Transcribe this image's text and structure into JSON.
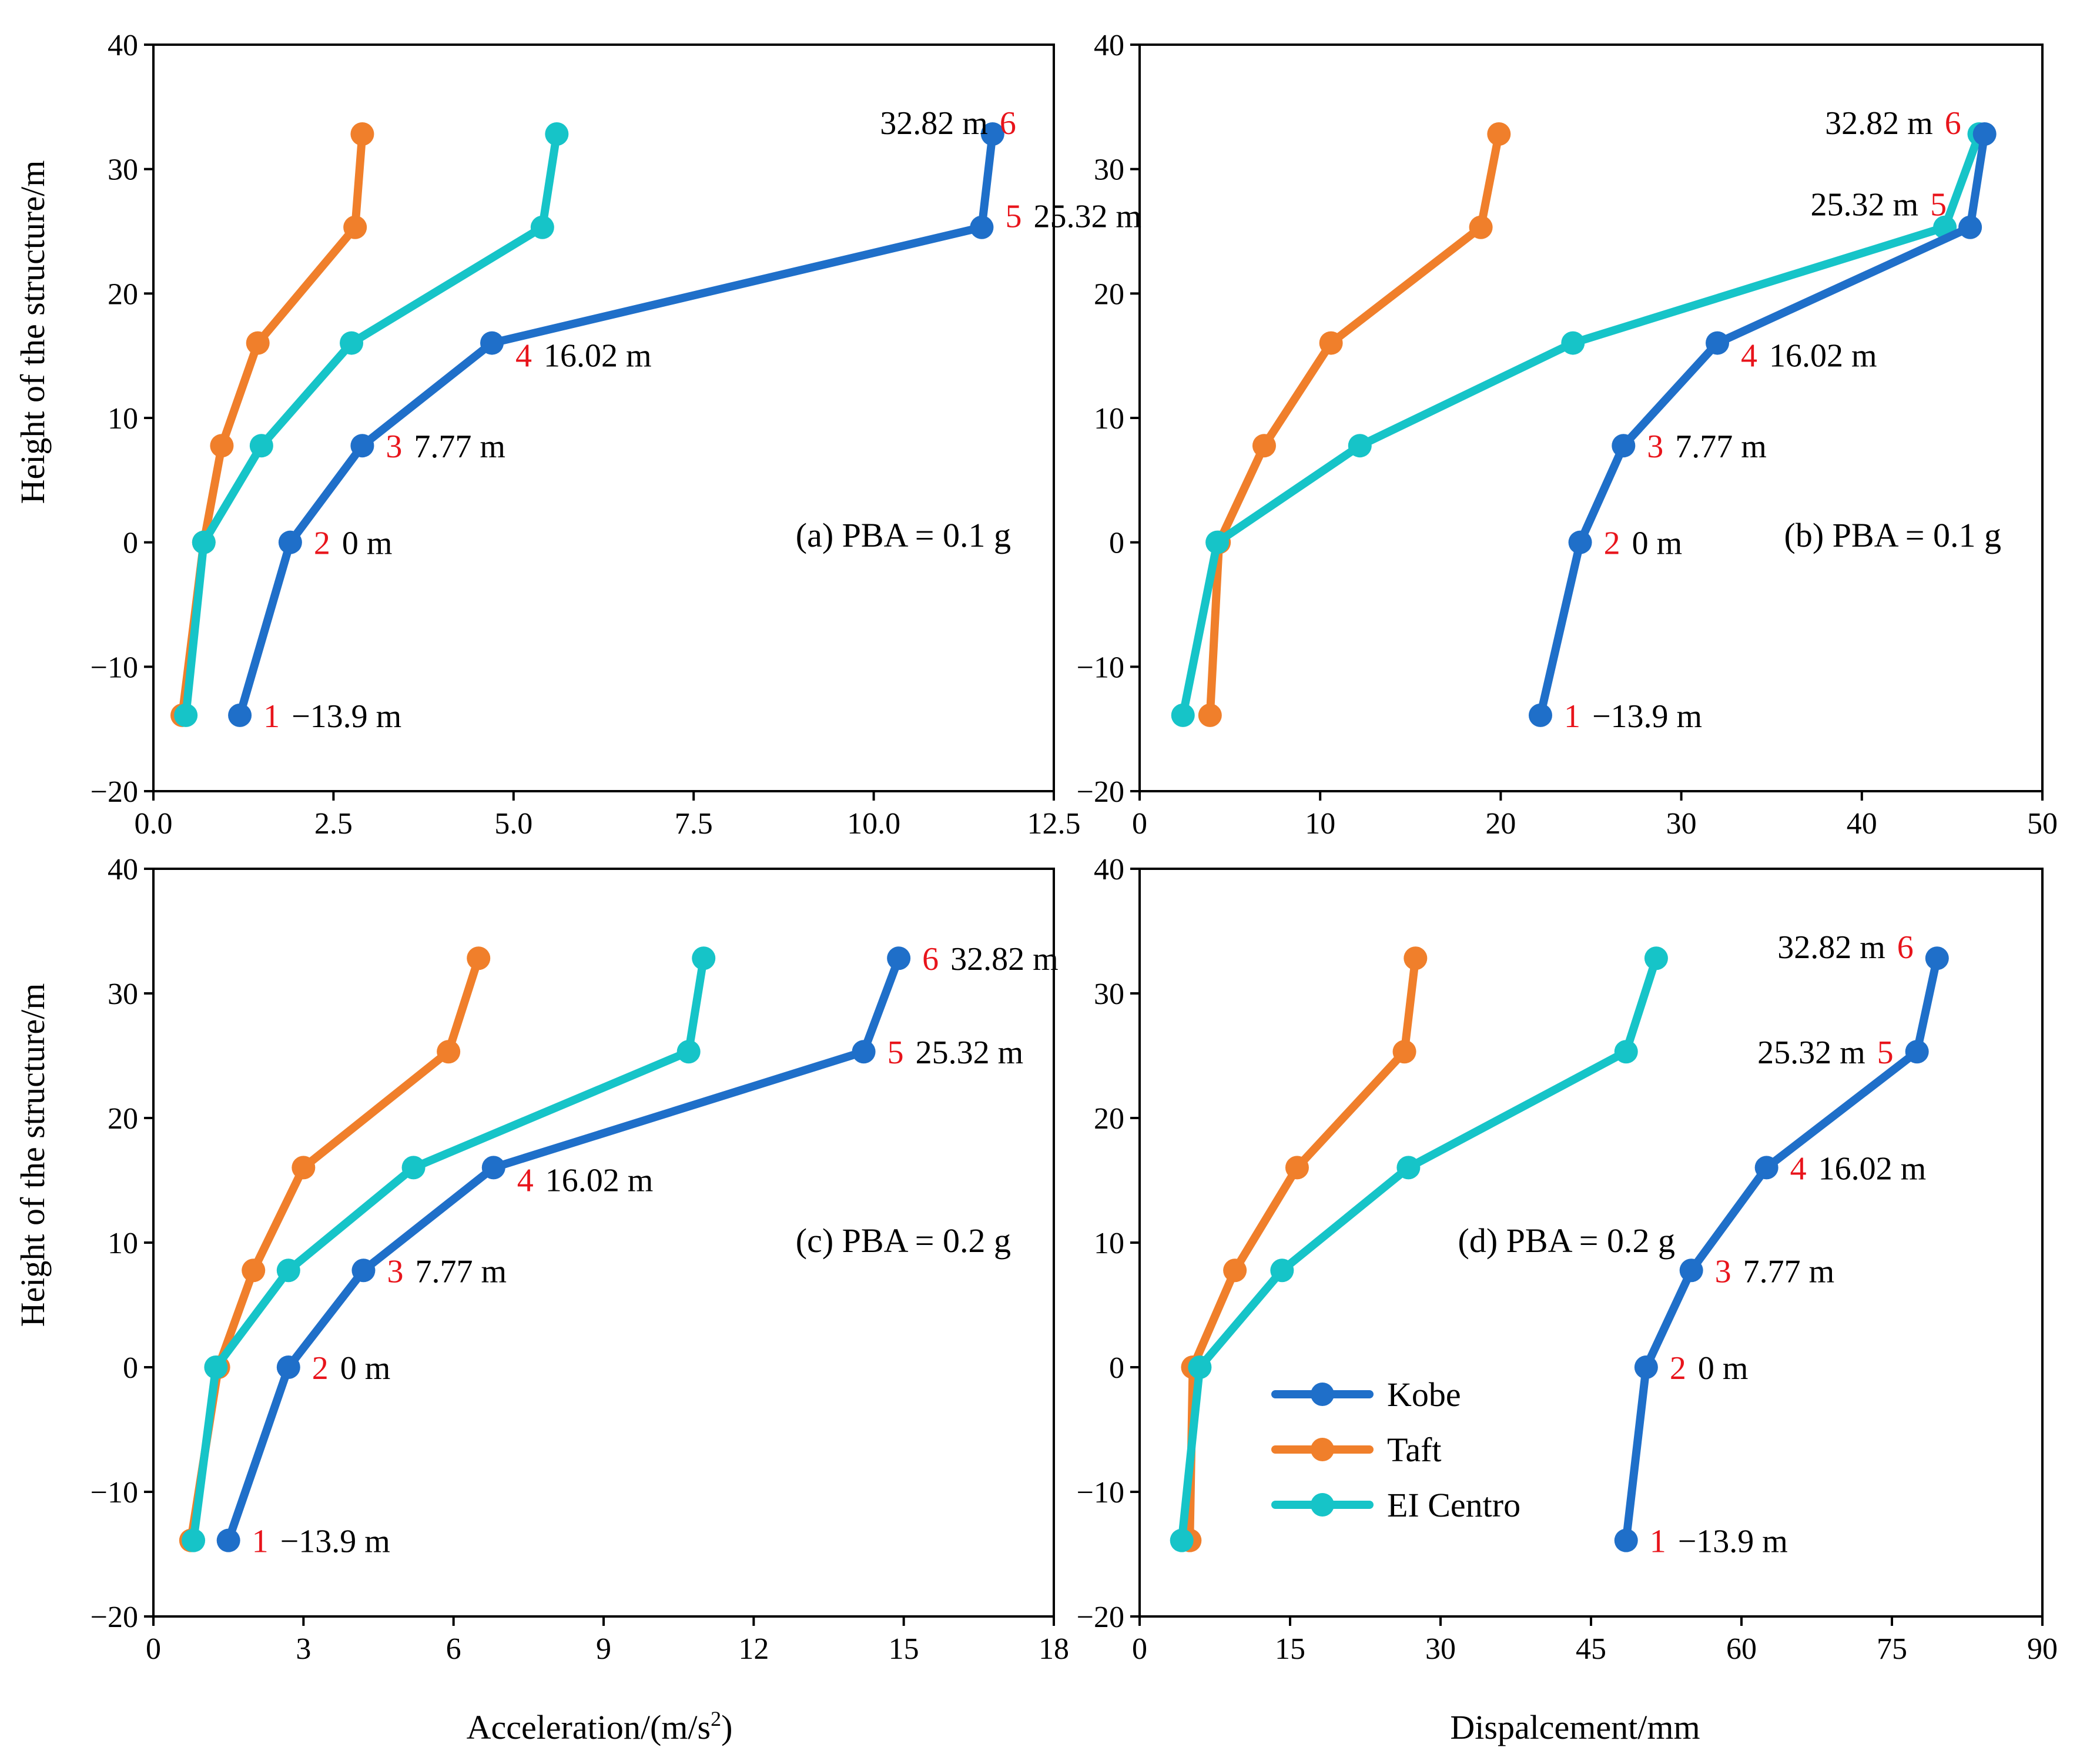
{
  "figure": {
    "ylabel": "Height of the structure/m",
    "xlabel_acc": "Acceleration/(m/s",
    "xlabel_acc_sup": "2",
    "xlabel_acc_end": ")",
    "xlabel_disp": "Dispalcement/mm"
  },
  "colors": {
    "Kobe": "#1f6fc9",
    "Taft": "#f07f2b",
    "EI Centro": "#16c4c8",
    "point_number": "#e8141b"
  },
  "legend": {
    "placement": "lower-left of panel (d)",
    "entries": [
      "Kobe",
      "Taft",
      "EI Centro"
    ]
  },
  "chart_data": [
    {
      "id": "a",
      "type": "line",
      "panel_label": "(a)  PBA = 0.1 g",
      "xlim": [
        0,
        12.5
      ],
      "ylim": [
        -20,
        40
      ],
      "xticks": [
        "0.0",
        "2.5",
        "5.0",
        "7.5",
        "10.0",
        "12.5"
      ],
      "yticks": [
        "−20",
        "−10",
        "0",
        "10",
        "20",
        "30",
        "40"
      ],
      "y": [
        -13.9,
        0,
        7.77,
        16.02,
        25.32,
        32.82
      ],
      "series": [
        {
          "name": "Kobe",
          "x": [
            1.2,
            1.9,
            2.9,
            4.7,
            11.5,
            11.65
          ]
        },
        {
          "name": "Taft",
          "x": [
            0.4,
            0.7,
            0.95,
            1.45,
            2.8,
            2.9
          ]
        },
        {
          "name": "EI Centro",
          "x": [
            0.45,
            0.7,
            1.5,
            2.75,
            5.4,
            5.6
          ]
        }
      ],
      "point_labels": [
        {
          "num": "1",
          "text": "−13.9 m"
        },
        {
          "num": "2",
          "text": "0 m"
        },
        {
          "num": "3",
          "text": "7.77 m"
        },
        {
          "num": "4",
          "text": "16.02 m"
        },
        {
          "num": "5",
          "text": "25.32 m"
        },
        {
          "num": "6",
          "text": "32.82 m"
        }
      ]
    },
    {
      "id": "b",
      "type": "line",
      "panel_label": "(b)  PBA = 0.1 g",
      "xlim": [
        0,
        50
      ],
      "ylim": [
        -20,
        40
      ],
      "xticks": [
        "0",
        "10",
        "20",
        "30",
        "40",
        "50"
      ],
      "yticks": [
        "−20",
        "−10",
        "0",
        "10",
        "20",
        "30",
        "40"
      ],
      "y": [
        -13.9,
        0,
        7.77,
        16.02,
        25.32,
        32.82
      ],
      "series": [
        {
          "name": "Kobe",
          "x": [
            22.2,
            24.4,
            26.8,
            32.0,
            46.0,
            46.8
          ]
        },
        {
          "name": "Taft",
          "x": [
            3.9,
            4.4,
            6.9,
            10.6,
            18.9,
            19.9
          ]
        },
        {
          "name": "EI Centro",
          "x": [
            2.4,
            4.3,
            12.2,
            24.0,
            44.6,
            46.5
          ]
        }
      ],
      "point_labels": [
        {
          "num": "1",
          "text": "−13.9 m"
        },
        {
          "num": "2",
          "text": "0 m"
        },
        {
          "num": "3",
          "text": "7.77 m"
        },
        {
          "num": "4",
          "text": "16.02 m"
        },
        {
          "num": "5",
          "text": "25.32 m"
        },
        {
          "num": "6",
          "text": "32.82 m"
        }
      ]
    },
    {
      "id": "c",
      "type": "line",
      "panel_label": "(c)  PBA = 0.2 g",
      "xlim": [
        0,
        18
      ],
      "ylim": [
        -20,
        40
      ],
      "xticks": [
        "0",
        "3",
        "6",
        "9",
        "12",
        "15",
        "18"
      ],
      "yticks": [
        "−20",
        "−10",
        "0",
        "10",
        "20",
        "30",
        "40"
      ],
      "y": [
        -13.9,
        0,
        7.77,
        16.02,
        25.32,
        32.82
      ],
      "series": [
        {
          "name": "Kobe",
          "x": [
            1.5,
            2.7,
            4.2,
            6.8,
            14.2,
            14.9
          ]
        },
        {
          "name": "Taft",
          "x": [
            0.75,
            1.3,
            2.0,
            3.0,
            5.9,
            6.5
          ]
        },
        {
          "name": "EI Centro",
          "x": [
            0.8,
            1.25,
            2.7,
            5.2,
            10.7,
            11.0
          ]
        }
      ],
      "point_labels": [
        {
          "num": "1",
          "text": "−13.9 m"
        },
        {
          "num": "2",
          "text": "0 m"
        },
        {
          "num": "3",
          "text": "7.77 m"
        },
        {
          "num": "4",
          "text": "16.02 m"
        },
        {
          "num": "5",
          "text": "25.32 m"
        },
        {
          "num": "6",
          "text": "32.82 m"
        }
      ]
    },
    {
      "id": "d",
      "type": "line",
      "panel_label": "(d)  PBA = 0.2 g",
      "xlim": [
        0,
        90
      ],
      "ylim": [
        -20,
        40
      ],
      "xticks": [
        "0",
        "15",
        "30",
        "45",
        "60",
        "75",
        "90"
      ],
      "yticks": [
        "−20",
        "−10",
        "0",
        "10",
        "20",
        "30",
        "40"
      ],
      "y": [
        -13.9,
        0,
        7.77,
        16.02,
        25.32,
        32.82
      ],
      "series": [
        {
          "name": "Kobe",
          "x": [
            48.5,
            50.5,
            55.0,
            62.5,
            77.5,
            79.5
          ]
        },
        {
          "name": "Taft",
          "x": [
            5.0,
            5.3,
            9.5,
            15.7,
            26.4,
            27.5
          ]
        },
        {
          "name": "EI Centro",
          "x": [
            4.2,
            6.0,
            14.2,
            26.8,
            48.5,
            51.5
          ]
        }
      ],
      "point_labels": [
        {
          "num": "1",
          "text": "−13.9 m"
        },
        {
          "num": "2",
          "text": "0 m"
        },
        {
          "num": "3",
          "text": "7.77 m"
        },
        {
          "num": "4",
          "text": "16.02 m"
        },
        {
          "num": "5",
          "text": "25.32 m"
        },
        {
          "num": "6",
          "text": "32.82 m"
        }
      ]
    }
  ]
}
